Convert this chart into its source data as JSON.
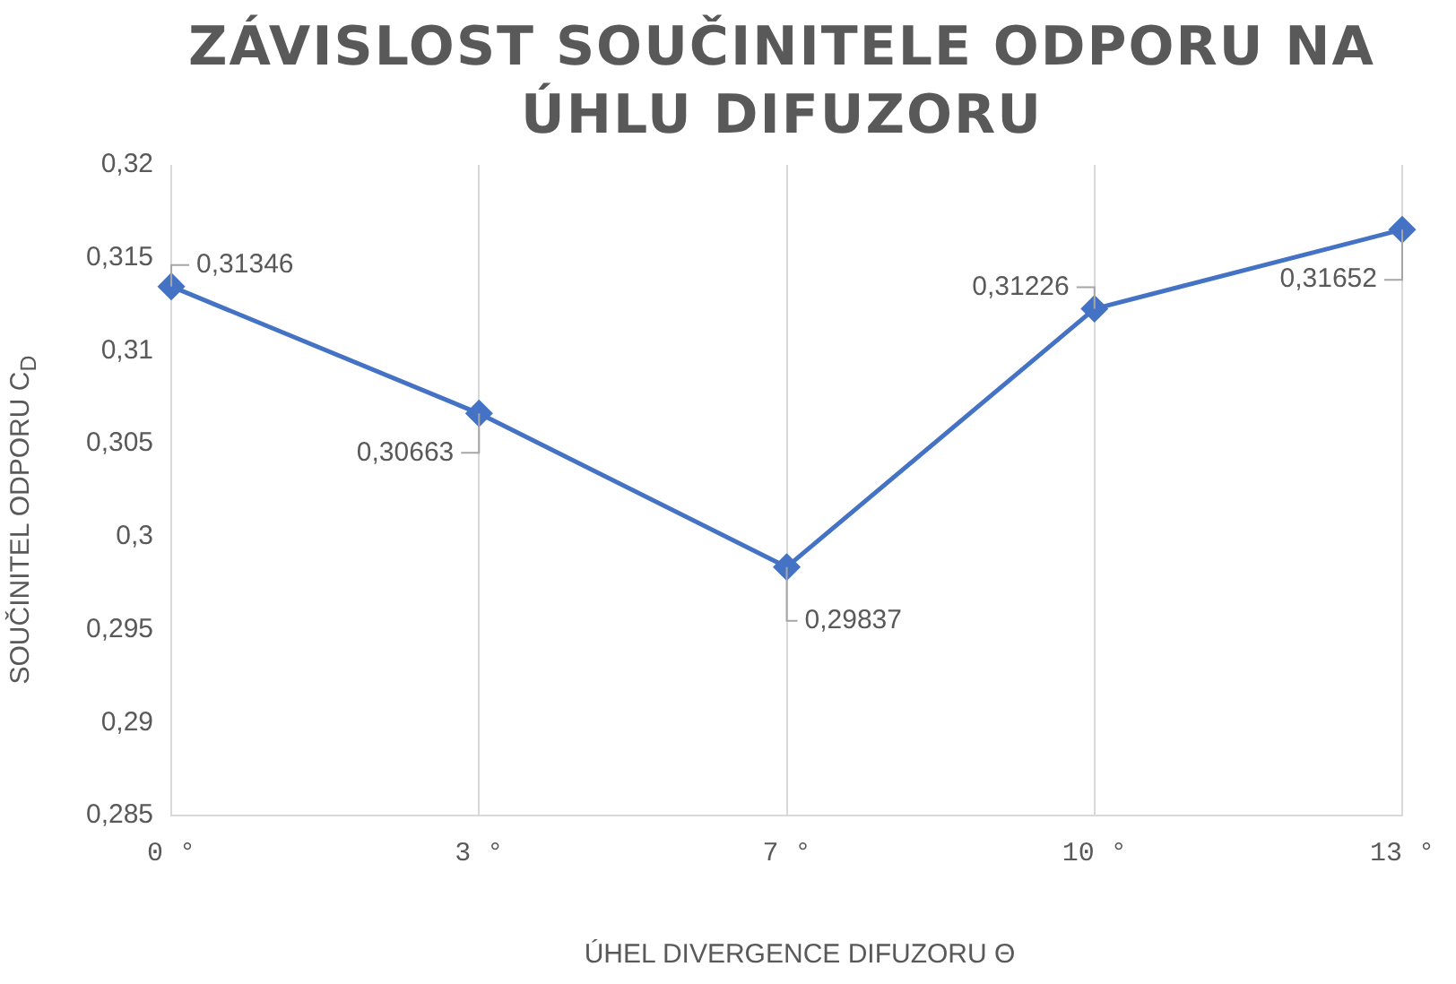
{
  "chart_data": {
    "type": "line",
    "title": "ZÁVISLOST SOUČINITELE ODPORU NA ÚHLU DIFUZORU",
    "xlabel": "ÚHEL DIVERGENCE DIFUZORU Θ",
    "ylabel": "SOUČINITEL ODPORU C$_{D}$",
    "categories": [
      "0 °",
      "3 °",
      "7 °",
      "10 °",
      "13 °"
    ],
    "series": [
      {
        "color": "#4472c4",
        "values": [
          0.31346,
          0.30663,
          0.29837,
          0.31226,
          0.31652
        ],
        "value_labels": [
          "0,31346",
          "0,30663",
          "0,29837",
          "0,31226",
          "0,31652"
        ]
      }
    ],
    "ylim": [
      0.285,
      0.32
    ],
    "yticks": [
      {
        "value": 0.285,
        "label": "0,285"
      },
      {
        "value": 0.29,
        "label": "0,29"
      },
      {
        "value": 0.295,
        "label": "0,295"
      },
      {
        "value": 0.3,
        "label": "0,3"
      },
      {
        "value": 0.305,
        "label": "0,305"
      },
      {
        "value": 0.31,
        "label": "0,31"
      },
      {
        "value": 0.315,
        "label": "0,315"
      },
      {
        "value": 0.32,
        "label": "0,32"
      }
    ],
    "grid": "x",
    "legend": false,
    "marker": "diamond",
    "line_style": "solid"
  }
}
